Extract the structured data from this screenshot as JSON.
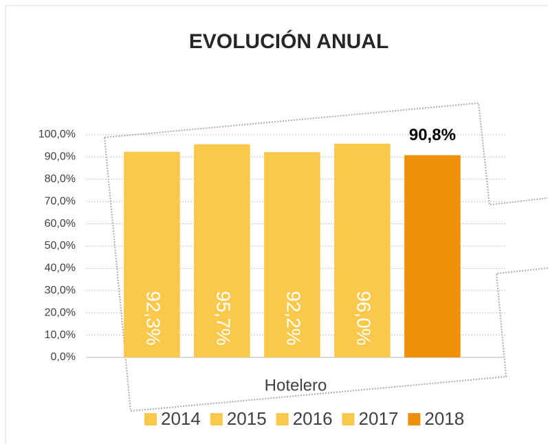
{
  "chart_data": {
    "type": "bar",
    "title": "EVOLUCIÓN ANUAL",
    "categories": [
      "Hotelero"
    ],
    "series": [
      {
        "name": "2014",
        "color": "#fac84b",
        "values": [
          92.3
        ],
        "value_labels": [
          "92,3%"
        ]
      },
      {
        "name": "2015",
        "color": "#fac84b",
        "values": [
          95.7
        ],
        "value_labels": [
          "95,7%"
        ]
      },
      {
        "name": "2016",
        "color": "#fac84b",
        "values": [
          92.2
        ],
        "value_labels": [
          "92,2%"
        ]
      },
      {
        "name": "2017",
        "color": "#fac84b",
        "values": [
          96.0
        ],
        "value_labels": [
          "96,0%"
        ]
      },
      {
        "name": "2018",
        "color": "#f0900a",
        "values": [
          90.8
        ],
        "value_labels": [
          "90,8%"
        ]
      }
    ],
    "ylim": [
      0,
      100
    ],
    "yticks": [
      {
        "value": 0,
        "label": "0,0%"
      },
      {
        "value": 10,
        "label": "10,0%"
      },
      {
        "value": 20,
        "label": "20,0%"
      },
      {
        "value": 30,
        "label": "30,0%"
      },
      {
        "value": 40,
        "label": "40,0%"
      },
      {
        "value": 50,
        "label": "50,0%"
      },
      {
        "value": 60,
        "label": "60,0%"
      },
      {
        "value": 70,
        "label": "70,0%"
      },
      {
        "value": 80,
        "label": "80,0%"
      },
      {
        "value": 90,
        "label": "90,0%"
      },
      {
        "value": 100,
        "label": "100,0%"
      }
    ],
    "grid": true,
    "legend": "bottom"
  }
}
